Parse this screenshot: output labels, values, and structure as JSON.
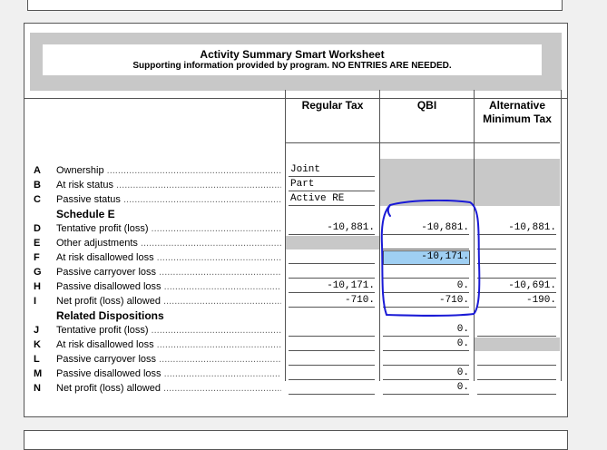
{
  "worksheet": {
    "title": "Activity Summary Smart Worksheet",
    "subtitle": "Supporting information provided by program. NO ENTRIES ARE NEEDED."
  },
  "columns": [
    {
      "line1": "Regular Tax",
      "line2": ""
    },
    {
      "line1": "QBI",
      "line2": ""
    },
    {
      "line1": "Alternative",
      "line2": "Minimum Tax"
    }
  ],
  "rows": [
    {
      "letter": "A",
      "label": "Ownership",
      "regular": "Joint",
      "qbi": "",
      "amt": ""
    },
    {
      "letter": "B",
      "label": "At risk status",
      "regular": "Part",
      "qbi": "",
      "amt": ""
    },
    {
      "letter": "C",
      "label": "Passive status",
      "regular": "Active RE",
      "qbi": "",
      "amt": ""
    },
    {
      "letter": "D",
      "label": "Tentative profit (loss)",
      "regular": "-10,881.",
      "qbi": "-10,881.",
      "amt": "-10,881."
    },
    {
      "letter": "E",
      "label": "Other adjustments",
      "regular": "",
      "qbi": "",
      "amt": ""
    },
    {
      "letter": "F",
      "label": "At risk disallowed loss",
      "regular": "",
      "qbi": "-10,171.",
      "amt": ""
    },
    {
      "letter": "G",
      "label": "Passive carryover loss",
      "regular": "",
      "qbi": "",
      "amt": ""
    },
    {
      "letter": "H",
      "label": "Passive disallowed loss",
      "regular": "-10,171.",
      "qbi": "0.",
      "amt": "-10,691."
    },
    {
      "letter": "I",
      "label": "Net profit (loss) allowed",
      "regular": "-710.",
      "qbi": "-710.",
      "amt": "-190."
    },
    {
      "letter": "J",
      "label": "Tentative profit (loss)",
      "regular": "",
      "qbi": "0.",
      "amt": ""
    },
    {
      "letter": "K",
      "label": "At risk disallowed loss",
      "regular": "",
      "qbi": "0.",
      "amt": ""
    },
    {
      "letter": "L",
      "label": "Passive carryover loss",
      "regular": "",
      "qbi": "",
      "amt": ""
    },
    {
      "letter": "M",
      "label": "Passive disallowed loss",
      "regular": "",
      "qbi": "0.",
      "amt": ""
    },
    {
      "letter": "N",
      "label": "Net profit (loss) allowed",
      "regular": "",
      "qbi": "0.",
      "amt": ""
    }
  ],
  "sections": {
    "schedule_e": "Schedule E",
    "related_dispositions": "Related Dispositions"
  },
  "colors": {
    "highlight": "#9fcff3",
    "shaded": "#c8c8c8",
    "annotation": "#1a1ad6"
  }
}
